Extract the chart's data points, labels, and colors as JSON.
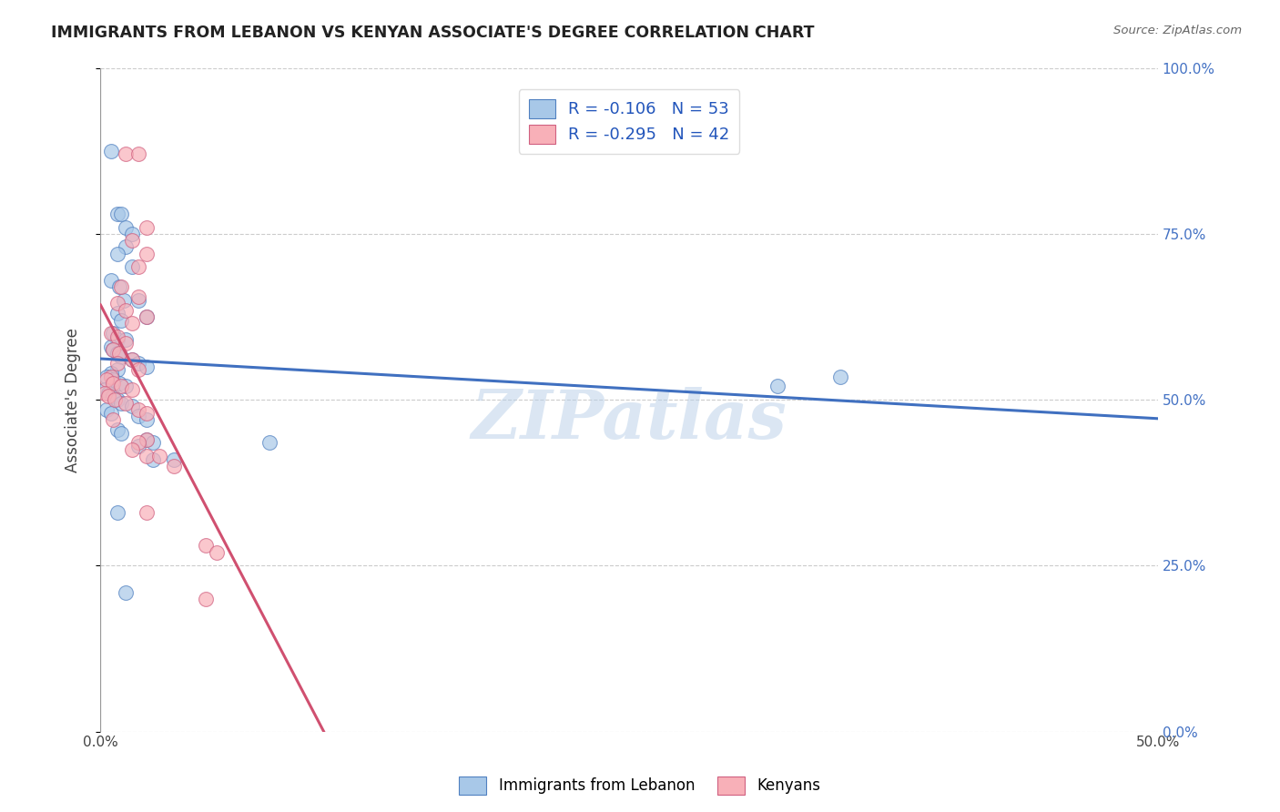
{
  "title": "IMMIGRANTS FROM LEBANON VS KENYAN ASSOCIATE'S DEGREE CORRELATION CHART",
  "source": "Source: ZipAtlas.com",
  "ylabel": "Associate's Degree",
  "yticks": [
    "0.0%",
    "25.0%",
    "50.0%",
    "75.0%",
    "100.0%"
  ],
  "ytick_vals": [
    0.0,
    0.25,
    0.5,
    0.75,
    1.0
  ],
  "legend_label1": "Immigrants from Lebanon",
  "legend_label2": "Kenyans",
  "R1": "-0.106",
  "N1": "53",
  "R2": "-0.295",
  "N2": "42",
  "watermark": "ZIPatlas",
  "xlim": [
    0.0,
    0.5
  ],
  "ylim": [
    0.0,
    1.0
  ],
  "blue_fill": "#a8c8e8",
  "pink_fill": "#f8b0b8",
  "blue_edge": "#5080c0",
  "pink_edge": "#d06080",
  "blue_line": "#4070c0",
  "pink_line": "#d05070",
  "blue_scatter": [
    [
      0.005,
      0.875
    ],
    [
      0.008,
      0.78
    ],
    [
      0.01,
      0.78
    ],
    [
      0.012,
      0.76
    ],
    [
      0.015,
      0.75
    ],
    [
      0.012,
      0.73
    ],
    [
      0.008,
      0.72
    ],
    [
      0.015,
      0.7
    ],
    [
      0.005,
      0.68
    ],
    [
      0.009,
      0.67
    ],
    [
      0.011,
      0.65
    ],
    [
      0.018,
      0.65
    ],
    [
      0.008,
      0.63
    ],
    [
      0.022,
      0.625
    ],
    [
      0.01,
      0.62
    ],
    [
      0.006,
      0.6
    ],
    [
      0.008,
      0.59
    ],
    [
      0.012,
      0.59
    ],
    [
      0.005,
      0.58
    ],
    [
      0.006,
      0.575
    ],
    [
      0.008,
      0.57
    ],
    [
      0.01,
      0.565
    ],
    [
      0.015,
      0.56
    ],
    [
      0.018,
      0.555
    ],
    [
      0.022,
      0.55
    ],
    [
      0.008,
      0.545
    ],
    [
      0.005,
      0.54
    ],
    [
      0.003,
      0.535
    ],
    [
      0.006,
      0.53
    ],
    [
      0.009,
      0.525
    ],
    [
      0.012,
      0.52
    ],
    [
      0.002,
      0.515
    ],
    [
      0.004,
      0.51
    ],
    [
      0.006,
      0.505
    ],
    [
      0.008,
      0.5
    ],
    [
      0.01,
      0.495
    ],
    [
      0.015,
      0.49
    ],
    [
      0.003,
      0.485
    ],
    [
      0.005,
      0.48
    ],
    [
      0.018,
      0.475
    ],
    [
      0.022,
      0.47
    ],
    [
      0.008,
      0.455
    ],
    [
      0.01,
      0.45
    ],
    [
      0.022,
      0.44
    ],
    [
      0.025,
      0.435
    ],
    [
      0.018,
      0.43
    ],
    [
      0.025,
      0.41
    ],
    [
      0.035,
      0.41
    ],
    [
      0.32,
      0.52
    ],
    [
      0.08,
      0.435
    ],
    [
      0.008,
      0.33
    ],
    [
      0.012,
      0.21
    ],
    [
      0.35,
      0.535
    ]
  ],
  "pink_scatter": [
    [
      0.012,
      0.87
    ],
    [
      0.018,
      0.87
    ],
    [
      0.022,
      0.76
    ],
    [
      0.015,
      0.74
    ],
    [
      0.022,
      0.72
    ],
    [
      0.018,
      0.7
    ],
    [
      0.01,
      0.67
    ],
    [
      0.018,
      0.655
    ],
    [
      0.008,
      0.645
    ],
    [
      0.012,
      0.635
    ],
    [
      0.022,
      0.625
    ],
    [
      0.015,
      0.615
    ],
    [
      0.005,
      0.6
    ],
    [
      0.008,
      0.595
    ],
    [
      0.012,
      0.585
    ],
    [
      0.006,
      0.575
    ],
    [
      0.009,
      0.57
    ],
    [
      0.015,
      0.56
    ],
    [
      0.008,
      0.555
    ],
    [
      0.018,
      0.545
    ],
    [
      0.005,
      0.535
    ],
    [
      0.003,
      0.53
    ],
    [
      0.006,
      0.525
    ],
    [
      0.01,
      0.52
    ],
    [
      0.015,
      0.515
    ],
    [
      0.002,
      0.51
    ],
    [
      0.004,
      0.505
    ],
    [
      0.007,
      0.5
    ],
    [
      0.012,
      0.495
    ],
    [
      0.018,
      0.485
    ],
    [
      0.022,
      0.48
    ],
    [
      0.006,
      0.47
    ],
    [
      0.022,
      0.44
    ],
    [
      0.018,
      0.435
    ],
    [
      0.015,
      0.425
    ],
    [
      0.022,
      0.415
    ],
    [
      0.028,
      0.415
    ],
    [
      0.035,
      0.4
    ],
    [
      0.05,
      0.28
    ],
    [
      0.055,
      0.27
    ],
    [
      0.05,
      0.2
    ],
    [
      0.022,
      0.33
    ]
  ]
}
